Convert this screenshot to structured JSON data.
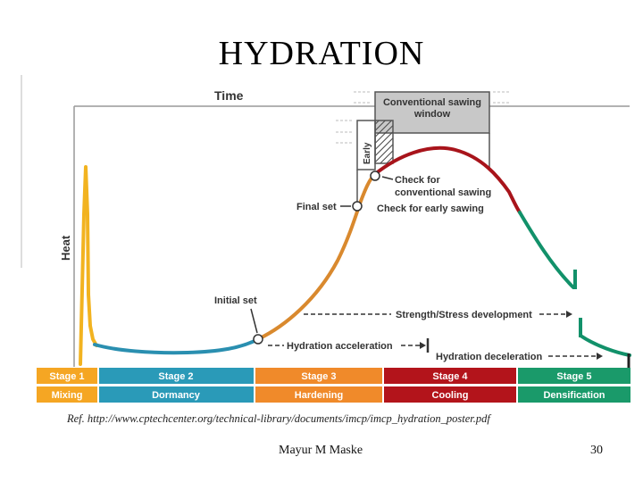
{
  "slide": {
    "title": "HYDRATION",
    "reference": "Ref. http://www.cptechcenter.org/technical-library/documents/imcp/imcp_hydration_poster.pdf",
    "author": "Mayur M Maske",
    "page_number": "30"
  },
  "diagram": {
    "y_axis_label": "Heat",
    "x_axis_label": "Time",
    "sawing_window_label_line1": "Conventional sawing",
    "sawing_window_label_line2": "window",
    "early_label": "Early",
    "check_conventional_line1": "Check for",
    "check_conventional_line2": "conventional sawing",
    "final_set_label": "Final set",
    "check_early_label": "Check for early sawing",
    "initial_set_label": "Initial set",
    "strength_label": "Strength/Stress development",
    "acceleration_label": "Hydration acceleration",
    "deceleration_label": "Hydration deceleration",
    "stages": [
      {
        "stage": "Stage 1",
        "name": "Mixing",
        "color": "#f5a623"
      },
      {
        "stage": "Stage 2",
        "name": "Dormancy",
        "color": "#2a9ab8"
      },
      {
        "stage": "Stage 3",
        "name": "Hardening",
        "color": "#f08a2a"
      },
      {
        "stage": "Stage 4",
        "name": "Cooling",
        "color": "#b3141b"
      },
      {
        "stage": "Stage 5",
        "name": "Densification",
        "color": "#1a9a6a"
      }
    ],
    "curve_colors": {
      "mixing": "#f2b320",
      "dormancy": "#2a8fb0",
      "hardening": "#d9892e",
      "cooling": "#a8141b",
      "densification": "#12916a"
    }
  }
}
